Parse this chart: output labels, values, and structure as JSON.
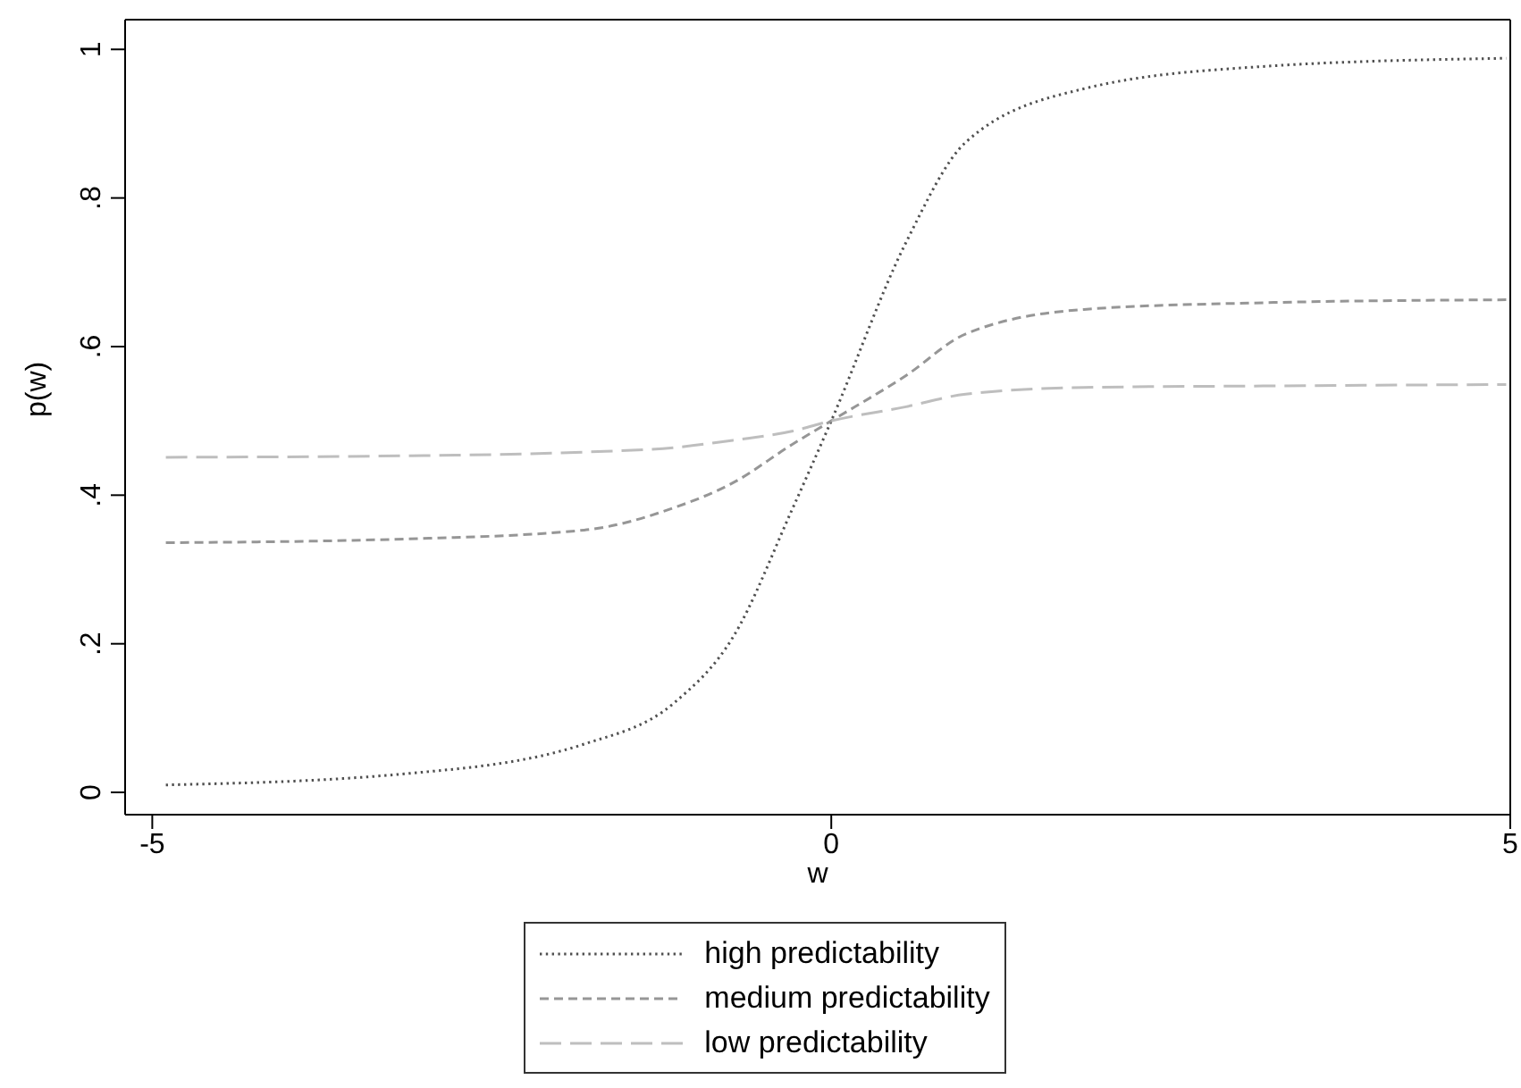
{
  "chart_data": {
    "type": "line",
    "xlabel": "w",
    "ylabel": "p(w)",
    "x": [
      -4.9,
      -3.14,
      -1.82,
      -1.16,
      -0.72,
      -0.29,
      0,
      0.55,
      0.99,
      1.86,
      3.18,
      4.97
    ],
    "series": [
      {
        "name": "high predictability",
        "color": "#505050",
        "line_style": "dotted",
        "values": [
          0.01,
          0.025,
          0.065,
          0.12,
          0.21,
          0.38,
          0.5,
          0.74,
          0.875,
          0.947,
          0.977,
          0.988
        ]
      },
      {
        "name": "medium predictability",
        "color": "#969696",
        "line_style": "dashed",
        "values": [
          0.336,
          0.341,
          0.353,
          0.383,
          0.417,
          0.468,
          0.5,
          0.561,
          0.617,
          0.65,
          0.659,
          0.663
        ]
      },
      {
        "name": "low predictability",
        "color": "#bebebe",
        "line_style": "dashed",
        "values": [
          0.451,
          0.453,
          0.458,
          0.464,
          0.474,
          0.486,
          0.5,
          0.519,
          0.536,
          0.545,
          0.547,
          0.549
        ]
      }
    ],
    "xlim": [
      -5.2,
      5
    ],
    "xticks": [
      -5,
      0,
      5
    ],
    "ylim": [
      -0.03,
      1.04
    ],
    "yticks": [
      0,
      {
        "value": 0.2,
        "label": ".2"
      },
      {
        "value": 0.4,
        "label": ".4"
      },
      {
        "value": 0.6,
        "label": ".6"
      },
      {
        "value": 0.8,
        "label": ".8"
      },
      {
        "value": 1,
        "label": "1"
      }
    ],
    "grid": false,
    "legend": "bottom",
    "marker": "none"
  }
}
